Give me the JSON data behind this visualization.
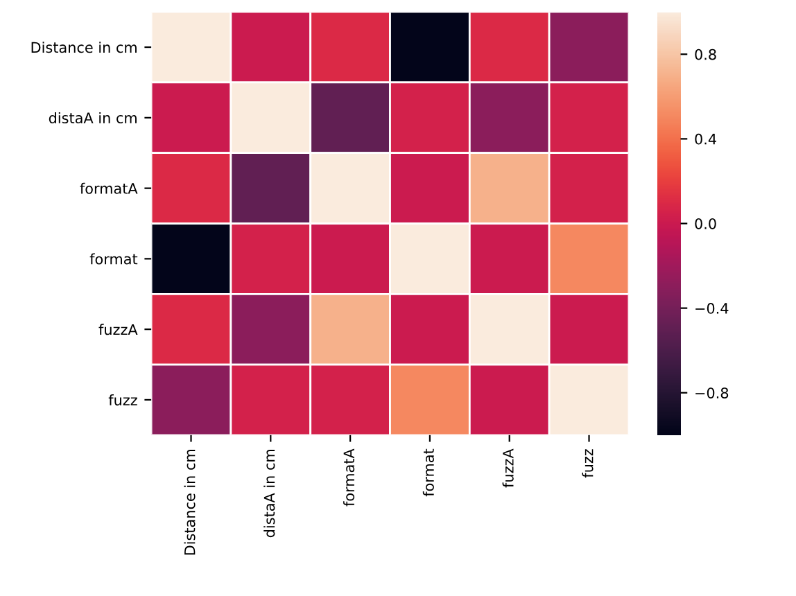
{
  "chart_data": {
    "type": "heatmap",
    "categories": [
      "Distance in cm",
      "distaA in cm",
      "formatA",
      "format",
      "fuzzA",
      "fuzz"
    ],
    "y_categories": [
      "Distance in cm",
      "distaA in cm",
      "formatA",
      "format",
      "fuzzA",
      "fuzz"
    ],
    "cells": [
      [
        1,
        0.0,
        0.1,
        -1.0,
        0.1,
        -0.3
      ],
      [
        0.0,
        1,
        -0.5,
        0.05,
        -0.3,
        0.05
      ],
      [
        0.1,
        -0.5,
        1,
        0.0,
        0.7,
        0.05
      ],
      [
        -1.0,
        0.05,
        0.0,
        1,
        0.0,
        0.5
      ],
      [
        0.1,
        -0.3,
        0.7,
        0.0,
        1,
        0.0
      ],
      [
        -0.3,
        0.05,
        0.05,
        0.5,
        0.0,
        1
      ]
    ],
    "clim": [
      -1,
      1
    ],
    "cticks": [
      {
        "value": -0.8,
        "label": "−0.8"
      },
      {
        "value": -0.4,
        "label": "−0.4"
      },
      {
        "value": 0.0,
        "label": "0.0"
      },
      {
        "value": 0.4,
        "label": "0.4"
      },
      {
        "value": 0.8,
        "label": "0.8"
      }
    ]
  }
}
